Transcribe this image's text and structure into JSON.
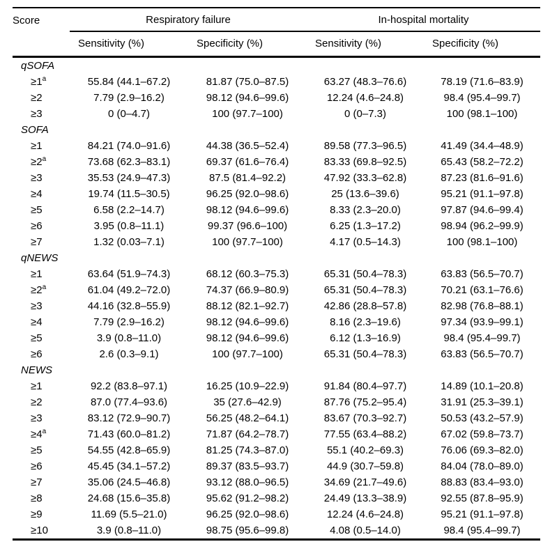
{
  "colors": {
    "background": "#ffffff",
    "text": "#000000",
    "rule": "#000000"
  },
  "table": {
    "score_header": "Score",
    "group_headers": [
      {
        "label": "Respiratory failure"
      },
      {
        "label": "In-hospital mortality"
      }
    ],
    "sub_headers": [
      "Sensitivity (%)",
      "Specificity (%)",
      "Sensitivity (%)",
      "Specificity (%)"
    ],
    "sections": [
      {
        "name": "qSOFA",
        "rows": [
          {
            "threshold": "≥1",
            "marker": "a",
            "values": [
              "55.84 (44.1–67.2)",
              "81.87 (75.0–87.5)",
              "63.27 (48.3–76.6)",
              "78.19 (71.6–83.9)"
            ]
          },
          {
            "threshold": "≥2",
            "marker": "",
            "values": [
              "7.79 (2.9–16.2)",
              "98.12 (94.6–99.6)",
              "12.24 (4.6–24.8)",
              "98.4 (95.4–99.7)"
            ]
          },
          {
            "threshold": "≥3",
            "marker": "",
            "values": [
              "0 (0–4.7)",
              "100 (97.7–100)",
              "0 (0–7.3)",
              "100 (98.1–100)"
            ]
          }
        ]
      },
      {
        "name": "SOFA",
        "rows": [
          {
            "threshold": "≥1",
            "marker": "",
            "values": [
              "84.21 (74.0–91.6)",
              "44.38 (36.5–52.4)",
              "89.58 (77.3–96.5)",
              "41.49 (34.4–48.9)"
            ]
          },
          {
            "threshold": "≥2",
            "marker": "a",
            "values": [
              "73.68 (62.3–83.1)",
              "69.37 (61.6–76.4)",
              "83.33 (69.8–92.5)",
              "65.43 (58.2–72.2)"
            ]
          },
          {
            "threshold": "≥3",
            "marker": "",
            "values": [
              "35.53 (24.9–47.3)",
              "87.5 (81.4–92.2)",
              "47.92 (33.3–62.8)",
              "87.23 (81.6–91.6)"
            ]
          },
          {
            "threshold": "≥4",
            "marker": "",
            "values": [
              "19.74 (11.5–30.5)",
              "96.25 (92.0–98.6)",
              "25 (13.6–39.6)",
              "95.21 (91.1–97.8)"
            ]
          },
          {
            "threshold": "≥5",
            "marker": "",
            "values": [
              "6.58 (2.2–14.7)",
              "98.12 (94.6–99.6)",
              "8.33 (2.3–20.0)",
              "97.87 (94.6–99.4)"
            ]
          },
          {
            "threshold": "≥6",
            "marker": "",
            "values": [
              "3.95 (0.8–11.1)",
              "99.37 (96.6–100)",
              "6.25 (1.3–17.2)",
              "98.94 (96.2–99.9)"
            ]
          },
          {
            "threshold": "≥7",
            "marker": "",
            "values": [
              "1.32 (0.03–7.1)",
              "100 (97.7–100)",
              "4.17 (0.5–14.3)",
              "100 (98.1–100)"
            ]
          }
        ]
      },
      {
        "name": "qNEWS",
        "rows": [
          {
            "threshold": "≥1",
            "marker": "",
            "values": [
              "63.64 (51.9–74.3)",
              "68.12 (60.3–75.3)",
              "65.31 (50.4–78.3)",
              "63.83 (56.5–70.7)"
            ]
          },
          {
            "threshold": "≥2",
            "marker": "a",
            "values": [
              "61.04 (49.2–72.0)",
              "74.37 (66.9–80.9)",
              "65.31 (50.4–78.3)",
              "70.21 (63.1–76.6)"
            ]
          },
          {
            "threshold": "≥3",
            "marker": "",
            "values": [
              "44.16 (32.8–55.9)",
              "88.12 (82.1–92.7)",
              "42.86 (28.8–57.8)",
              "82.98 (76.8–88.1)"
            ]
          },
          {
            "threshold": "≥4",
            "marker": "",
            "values": [
              "7.79 (2.9–16.2)",
              "98.12 (94.6–99.6)",
              "8.16 (2.3–19.6)",
              "97.34 (93.9–99.1)"
            ]
          },
          {
            "threshold": "≥5",
            "marker": "",
            "values": [
              "3.9 (0.8–11.0)",
              "98.12 (94.6–99.6)",
              "6.12 (1.3–16.9)",
              "98.4 (95.4–99.7)"
            ]
          },
          {
            "threshold": "≥6",
            "marker": "",
            "values": [
              "2.6 (0.3–9.1)",
              "100 (97.7–100)",
              "65.31 (50.4–78.3)",
              "63.83 (56.5–70.7)"
            ]
          }
        ]
      },
      {
        "name": "NEWS",
        "rows": [
          {
            "threshold": "≥1",
            "marker": "",
            "values": [
              "92.2 (83.8–97.1)",
              "16.25 (10.9–22.9)",
              "91.84 (80.4–97.7)",
              "14.89 (10.1–20.8)"
            ]
          },
          {
            "threshold": "≥2",
            "marker": "",
            "values": [
              "87.0 (77.4–93.6)",
              "35 (27.6–42.9)",
              "87.76 (75.2–95.4)",
              "31.91 (25.3–39.1)"
            ]
          },
          {
            "threshold": "≥3",
            "marker": "",
            "values": [
              "83.12 (72.9–90.7)",
              "56.25 (48.2–64.1)",
              "83.67 (70.3–92.7)",
              "50.53 (43.2–57.9)"
            ]
          },
          {
            "threshold": "≥4",
            "marker": "a",
            "values": [
              "71.43 (60.0–81.2)",
              "71.87 (64.2–78.7)",
              "77.55 (63.4–88.2)",
              "67.02 (59.8–73.7)"
            ]
          },
          {
            "threshold": "≥5",
            "marker": "",
            "values": [
              "54.55 (42.8–65.9)",
              "81.25 (74.3–87.0)",
              "55.1 (40.2–69.3)",
              "76.06 (69.3–82.0)"
            ]
          },
          {
            "threshold": "≥6",
            "marker": "",
            "values": [
              "45.45 (34.1–57.2)",
              "89.37 (83.5–93.7)",
              "44.9 (30.7–59.8)",
              "84.04 (78.0–89.0)"
            ]
          },
          {
            "threshold": "≥7",
            "marker": "",
            "values": [
              "35.06 (24.5–46.8)",
              "93.12 (88.0–96.5)",
              "34.69 (21.7–49.6)",
              "88.83 (83.4–93.0)"
            ]
          },
          {
            "threshold": "≥8",
            "marker": "",
            "values": [
              "24.68 (15.6–35.8)",
              "95.62 (91.2–98.2)",
              "24.49 (13.3–38.9)",
              "92.55 (87.8–95.9)"
            ]
          },
          {
            "threshold": "≥9",
            "marker": "",
            "values": [
              "11.69 (5.5–21.0)",
              "96.25 (92.0–98.6)",
              "12.24 (4.6–24.8)",
              "95.21 (91.1–97.8)"
            ]
          },
          {
            "threshold": "≥10",
            "marker": "",
            "values": [
              "3.9 (0.8–11.0)",
              "98.75 (95.6–99.8)",
              "4.08 (0.5–14.0)",
              "98.4 (95.4–99.7)"
            ]
          }
        ]
      }
    ]
  }
}
